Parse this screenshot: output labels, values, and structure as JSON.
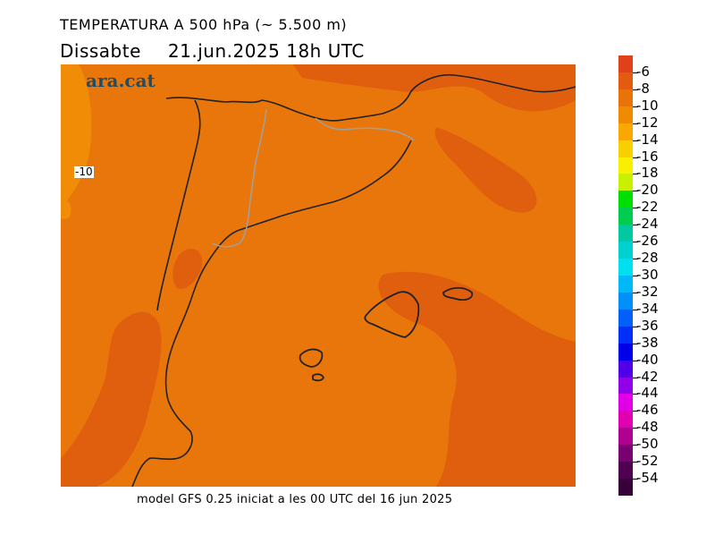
{
  "header": {
    "title": "TEMPERATURA A 500 hPa (~ 5.500 m)",
    "day": "Dissabte",
    "datetime": "21.jun.2025 18h UTC"
  },
  "map": {
    "brand": "ara.cat",
    "contour_label": "-10",
    "colors": {
      "base": "#e8760a",
      "warm": "#e05f0e",
      "cool": "#f08c05",
      "coast": "#222222",
      "border": "#a0a0a0"
    }
  },
  "footer": {
    "text": "model GFS 0.25 iniciat a les 00 UTC del 16 jun 2025"
  },
  "legend": {
    "labels": [
      "-6",
      "-8",
      "-10",
      "-12",
      "-14",
      "-16",
      "-18",
      "-20",
      "-22",
      "-24",
      "-26",
      "-28",
      "-30",
      "-32",
      "-34",
      "-36",
      "-38",
      "-40",
      "-42",
      "-44",
      "-46",
      "-48",
      "-50",
      "-52",
      "-54"
    ],
    "colors": [
      "#e0401a",
      "#e35b10",
      "#e87308",
      "#f08a00",
      "#f8a800",
      "#f8cf00",
      "#f8f000",
      "#c8f000",
      "#00e000",
      "#00cc50",
      "#00c8a0",
      "#00d0d0",
      "#00e0f0",
      "#00b8f8",
      "#0090f8",
      "#0060f8",
      "#0030f8",
      "#0000e8",
      "#5000e8",
      "#9000e8",
      "#e000e8",
      "#e000b0",
      "#b00090",
      "#780070",
      "#500050",
      "#380038"
    ]
  }
}
